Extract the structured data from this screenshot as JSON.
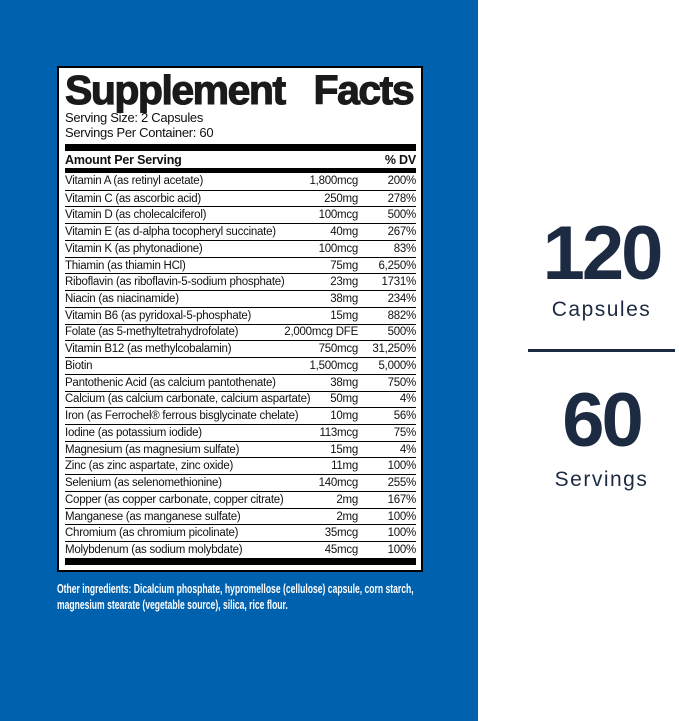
{
  "page": {
    "brand_blue": "#0061ae",
    "navy": "#1d2b42"
  },
  "label": {
    "title": "Supplement Facts",
    "serving_size": "Serving Size: 2 Capsules",
    "servings_per_container": "Servings Per Container: 60",
    "columns": {
      "amount_header": "Amount Per Serving",
      "dv_header": "% DV"
    },
    "rows": [
      {
        "name": "Vitamin A (as retinyl acetate)",
        "amount": "1,800mcg",
        "dv": "200%"
      },
      {
        "name": "Vitamin C (as ascorbic acid)",
        "amount": "250mg",
        "dv": "278%"
      },
      {
        "name": "Vitamin D (as cholecalciferol)",
        "amount": "100mcg",
        "dv": "500%"
      },
      {
        "name": "Vitamin E (as d-alpha tocopheryl succinate)",
        "amount": "40mg",
        "dv": "267%"
      },
      {
        "name": "Vitamin K (as phytonadione)",
        "amount": "100mcg",
        "dv": "83%"
      },
      {
        "name": "Thiamin (as thiamin HCl)",
        "amount": "75mg",
        "dv": "6,250%"
      },
      {
        "name": "Riboflavin (as riboflavin-5-sodium phosphate)",
        "amount": "23mg",
        "dv": "1731%"
      },
      {
        "name": "Niacin (as niacinamide)",
        "amount": "38mg",
        "dv": "234%"
      },
      {
        "name": "Vitamin B6 (as pyridoxal-5-phosphate)",
        "amount": "15mg",
        "dv": "882%"
      },
      {
        "name": "Folate (as 5-methyltetrahydrofolate)",
        "amount": "2,000mcg DFE",
        "dv": "500%"
      },
      {
        "name": "Vitamin B12 (as methylcobalamin)",
        "amount": "750mcg",
        "dv": "31,250%"
      },
      {
        "name": "Biotin",
        "amount": "1,500mcg",
        "dv": "5,000%"
      },
      {
        "name": "Pantothenic Acid (as calcium pantothenate)",
        "amount": "38mg",
        "dv": "750%"
      },
      {
        "name": "Calcium (as calcium carbonate, calcium aspartate)",
        "amount": "50mg",
        "dv": "4%"
      },
      {
        "name": "Iron (as Ferrochel® ferrous bisglycinate chelate)",
        "amount": "10mg",
        "dv": "56%"
      },
      {
        "name": "Iodine (as potassium iodide)",
        "amount": "113mcg",
        "dv": "75%"
      },
      {
        "name": "Magnesium (as magnesium sulfate)",
        "amount": "15mg",
        "dv": "4%"
      },
      {
        "name": "Zinc (as zinc aspartate, zinc oxide)",
        "amount": "11mg",
        "dv": "100%"
      },
      {
        "name": "Selenium (as selenomethionine)",
        "amount": "140mcg",
        "dv": "255%"
      },
      {
        "name": "Copper (as copper carbonate, copper citrate)",
        "amount": "2mg",
        "dv": "167%"
      },
      {
        "name": "Manganese (as manganese sulfate)",
        "amount": "2mg",
        "dv": "100%"
      },
      {
        "name": "Chromium (as chromium picolinate)",
        "amount": "35mcg",
        "dv": "100%"
      },
      {
        "name": "Molybdenum (as sodium molybdate)",
        "amount": "45mcg",
        "dv": "100%"
      }
    ],
    "other_ingredients": "Other ingredients: Dicalcium phosphate, hypromellose (cellulose) capsule, corn starch, magnesium stearate (vegetable source), silica, rice flour."
  },
  "right_panel": {
    "capsule_count": "120",
    "capsule_label": "Capsules",
    "serving_count": "60",
    "serving_label": "Servings"
  }
}
